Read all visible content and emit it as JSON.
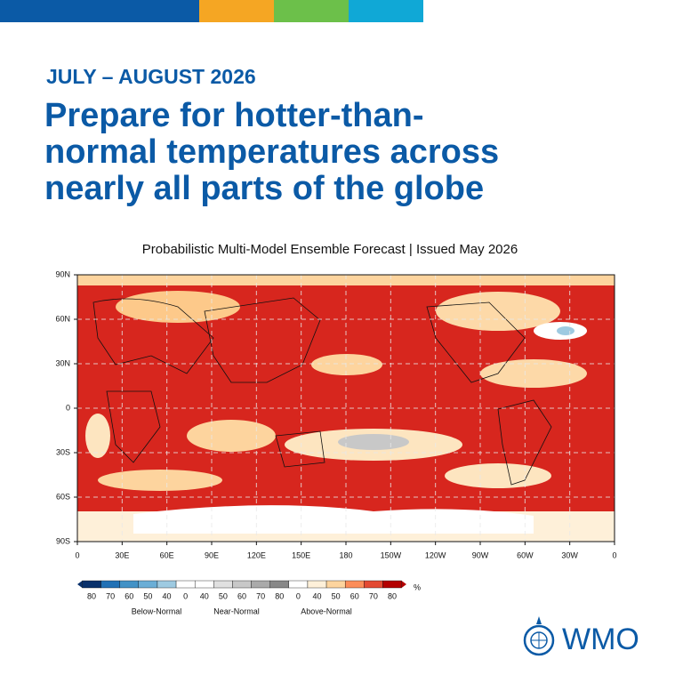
{
  "header": {
    "period": "JULY – AUGUST 2026",
    "title": [
      "Prepare for hotter-than-",
      "normal temperatures across",
      "nearly all parts of the globe"
    ],
    "subtitle": "Probabilistic Multi-Model Ensemble Forecast | Issued May 2026"
  },
  "map": {
    "lat_labels": [
      "90N",
      "60N",
      "30N",
      "0",
      "30S",
      "60S",
      "90S"
    ],
    "lon_labels": [
      "0",
      "30E",
      "60E",
      "90E",
      "120E",
      "150E",
      "180",
      "150W",
      "120W",
      "90W",
      "60W",
      "30W",
      "0"
    ]
  },
  "legend": {
    "ticks": [
      "80",
      "70",
      "60",
      "50",
      "40",
      "0",
      "40",
      "50",
      "60",
      "70",
      "80",
      "0",
      "40",
      "50",
      "60",
      "70",
      "80"
    ],
    "unit": "%",
    "categories": [
      "Below-Normal",
      "Near-Normal",
      "Above-Normal"
    ]
  },
  "logo": "WMO"
}
